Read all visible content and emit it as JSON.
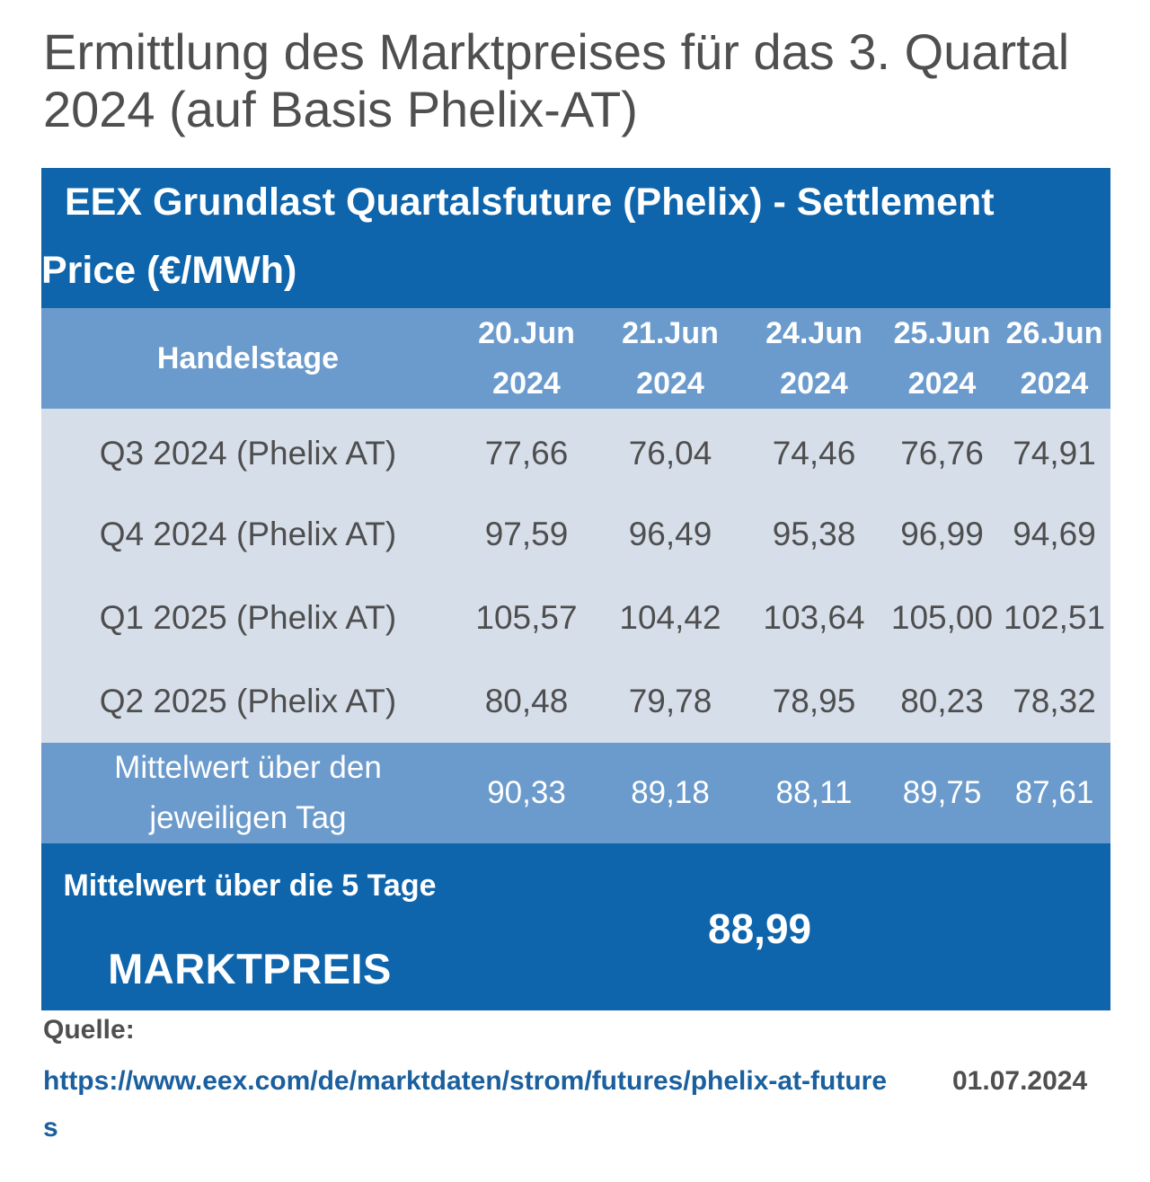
{
  "title": "Ermittlung des Marktpreises für das 3. Quartal 2024 (auf Basis Phelix-AT)",
  "table": {
    "header_line1": "EEX Grundlast Quartalsfuture (Phelix) - Settlement",
    "header_line2": "Price (€/MWh)",
    "days_label": "Handelstage",
    "days": [
      {
        "day": "20.Jun",
        "year": "2024"
      },
      {
        "day": "21.Jun",
        "year": "2024"
      },
      {
        "day": "24.Jun",
        "year": "2024"
      },
      {
        "day": "25.Jun",
        "year": "2024"
      },
      {
        "day": "26.Jun",
        "year": "2024"
      }
    ],
    "rows": [
      {
        "label": "Q3 2024 (Phelix AT)",
        "values": [
          "77,66",
          "76,04",
          "74,46",
          "76,76",
          "74,91"
        ]
      },
      {
        "label": "Q4 2024 (Phelix AT)",
        "values": [
          "97,59",
          "96,49",
          "95,38",
          "96,99",
          "94,69"
        ]
      },
      {
        "label": "Q1 2025 (Phelix AT)",
        "values": [
          "105,57",
          "104,42",
          "103,64",
          "105,00",
          "102,51"
        ]
      },
      {
        "label": "Q2 2025 (Phelix AT)",
        "values": [
          "80,48",
          "79,78",
          "78,95",
          "80,23",
          "78,32"
        ]
      }
    ],
    "avg_label_line1": "Mittelwert über den",
    "avg_label_line2": "jeweiligen Tag",
    "avg_values": [
      "90,33",
      "89,18",
      "88,11",
      "89,75",
      "87,61"
    ],
    "final_label": "Mittelwert über die 5 Tage",
    "final_mark": "MARKTPREIS",
    "final_value": "88,99"
  },
  "source": {
    "label": "Quelle:",
    "url": "https://www.eex.com/de/marktdaten/strom/futures/phelix-at-futures",
    "date": "01.07.2024"
  },
  "colors": {
    "dark_blue": "#0e65ac",
    "mid_blue": "#6b9bcc",
    "light_row": "#d6deea",
    "link": "#1a5f9e"
  }
}
